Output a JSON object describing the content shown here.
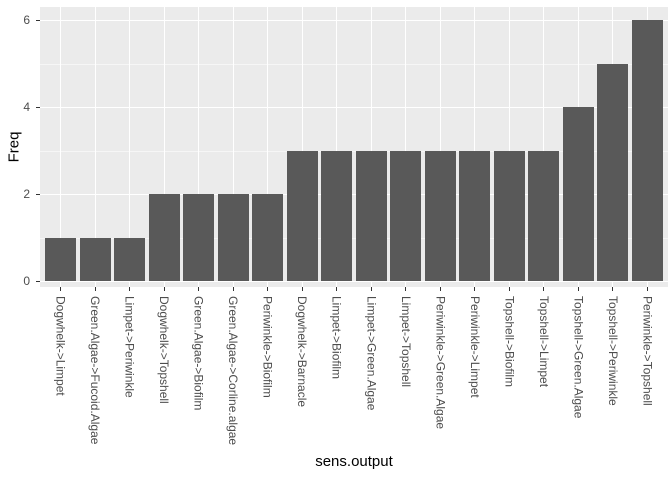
{
  "chart_data": {
    "type": "bar",
    "title": "",
    "xlabel": "sens.output",
    "ylabel": "Freq",
    "categories": [
      "Dogwhelk->Limpet",
      "Green.Algae->Fucoid.Algae",
      "Limpet->Periwinkle",
      "Dogwhelk->Topshell",
      "Green.Algae->Biofilm",
      "Green.Algae->Corline.algae",
      "Periwinkle->Biofilm",
      "Dogwhelk->Barnacle",
      "Limpet->Biofilm",
      "Limpet->Green.Algae",
      "Limpet->Topshell",
      "Periwinkle->Green.Algae",
      "Periwinkle->Limpet",
      "Topshell->Biofilm",
      "Topshell->Limpet",
      "Topshell->Green.Algae",
      "Topshell->Periwinkle",
      "Periwinkle->Topshell"
    ],
    "values": [
      1,
      1,
      1,
      2,
      2,
      2,
      2,
      3,
      3,
      3,
      3,
      3,
      3,
      3,
      3,
      4,
      5,
      6
    ],
    "ylim": [
      0,
      6.3
    ],
    "y_major_ticks": [
      "0",
      "2",
      "4",
      "6"
    ],
    "y_major_values": [
      0,
      2,
      4,
      6
    ],
    "y_minor_values": [
      1,
      3,
      5
    ],
    "grid": "horizontal major+minor, vertical major at category centers",
    "legend_position": "none",
    "colors": {
      "bar": "#595959",
      "panel_bg": "#EBEBEB",
      "grid": "#FFFFFF",
      "tick_text": "#4D4D4D",
      "axis_title": "#000000",
      "tick_mark": "#333333",
      "page_bg": "#FFFFFF"
    }
  }
}
